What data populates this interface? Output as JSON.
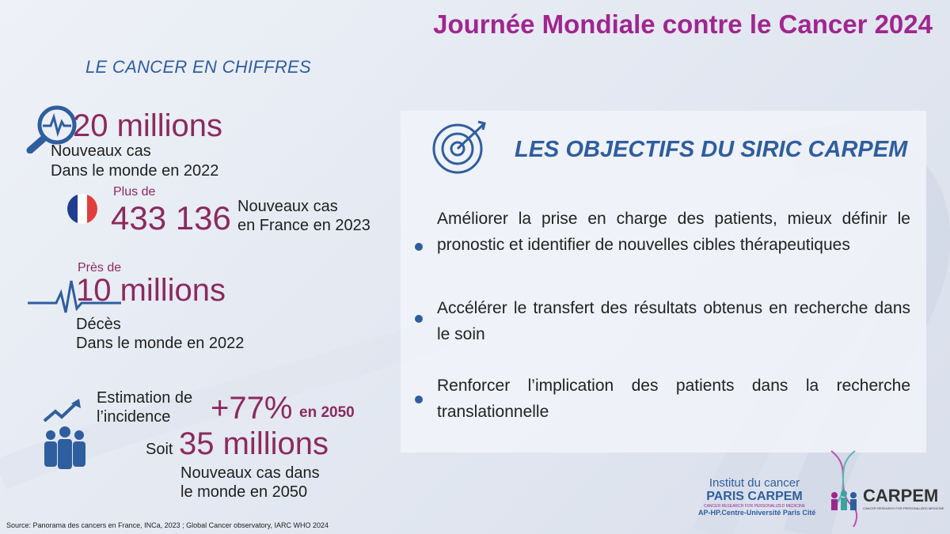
{
  "header": {
    "title": "Journée Mondiale contre le Cancer 2024",
    "subtitle": "LE CANCER EN CHIFFRES"
  },
  "stats": {
    "world_new": {
      "value": "20 millions",
      "line1": "Nouveaux cas",
      "line2": "Dans le monde en 2022"
    },
    "france": {
      "prefix": "Plus de",
      "value": "433 136",
      "line1": "Nouveaux cas",
      "line2": "en France en 2023"
    },
    "deaths": {
      "prefix": "Près de",
      "value": "10 millions",
      "line1": "Décès",
      "line2": "Dans le monde en 2022"
    },
    "projection": {
      "label1": "Estimation de",
      "label2": "l’incidence",
      "value": "+77%",
      "year": "en 2050",
      "soit": "Soit",
      "value2": "35 millions",
      "line1": "Nouveaux cas dans",
      "line2": "le monde en 2050"
    }
  },
  "objectives": {
    "title": "LES OBJECTIFS DU SIRIC CARPEM",
    "items": [
      "Améliorer la prise en charge des patients, mieux définir le pronostic et identifier de nouvelles cibles thérapeutiques",
      "Accélérer le transfert des résultats obtenus en recherche dans  le soin",
      "Renforcer l’implication des patients dans la recherche translationnelle"
    ]
  },
  "source": "Source: Panorama des cancers en France, INCa, 2023 ; Global Cancer observatory, IARC WHO 2024",
  "logos": {
    "institut": {
      "line1": "Institut du cancer",
      "line2": "PARIS CARPEM",
      "tagline": "CANCER RESEARCH FOR PERSONALIZED MEDICINE",
      "affiliation": "AP-HP.Centre-Université Paris Cité"
    },
    "carpem": {
      "name": "CARPEM",
      "tagline": "CANCER RESEARCH FOR PERSONALIZED MEDICINE"
    }
  },
  "colors": {
    "title": "#a0268f",
    "accent_blue": "#2f5e9e",
    "stat": "#8b2a5f"
  }
}
